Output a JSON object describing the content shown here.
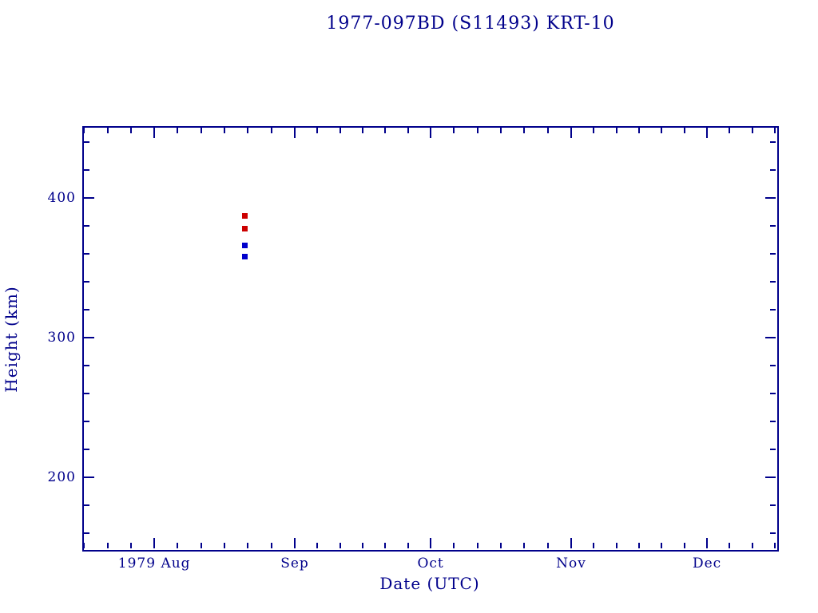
{
  "title": "1977-097BD (S11493) KRT-10",
  "chart_data": {
    "type": "scatter",
    "title": "1977-097BD (S11493) KRT-10",
    "xlabel": "Date (UTC)",
    "ylabel": "Height (km)",
    "background_color": "#ffffff",
    "axis_color": "#00008b",
    "grid": false,
    "legend": false,
    "x_axis": {
      "unit": "days relative to 1979 Aug 1",
      "domain_days": [
        -15.9,
        137.5
      ],
      "ticks": [
        {
          "label": "1979 Aug",
          "day": 0
        },
        {
          "label": "Sep",
          "day": 31
        },
        {
          "label": "Oct",
          "day": 61
        },
        {
          "label": "Nov",
          "day": 92
        },
        {
          "label": "Dec",
          "day": 122
        }
      ],
      "minor_divisions_per_interval": 6
    },
    "y_axis": {
      "range_km": [
        148,
        451.4
      ],
      "major_ticks": [
        200,
        300,
        400
      ],
      "minor_step_km": 20
    },
    "series": [
      {
        "name": "upper-height-red-squares",
        "color": "#cc0000",
        "marker": "filled-square",
        "points": [
          {
            "date_est": "1979 Aug 21",
            "day": 20.0,
            "height_km": 387
          },
          {
            "date_est": "1979 Aug 21",
            "day": 20.0,
            "height_km": 378
          }
        ]
      },
      {
        "name": "lower-height-blue-squares",
        "color": "#0000cc",
        "marker": "filled-square",
        "points": [
          {
            "date_est": "1979 Aug 21",
            "day": 19.9,
            "height_km": 366
          },
          {
            "date_est": "1979 Aug 21",
            "day": 19.9,
            "height_km": 358
          }
        ]
      }
    ]
  }
}
